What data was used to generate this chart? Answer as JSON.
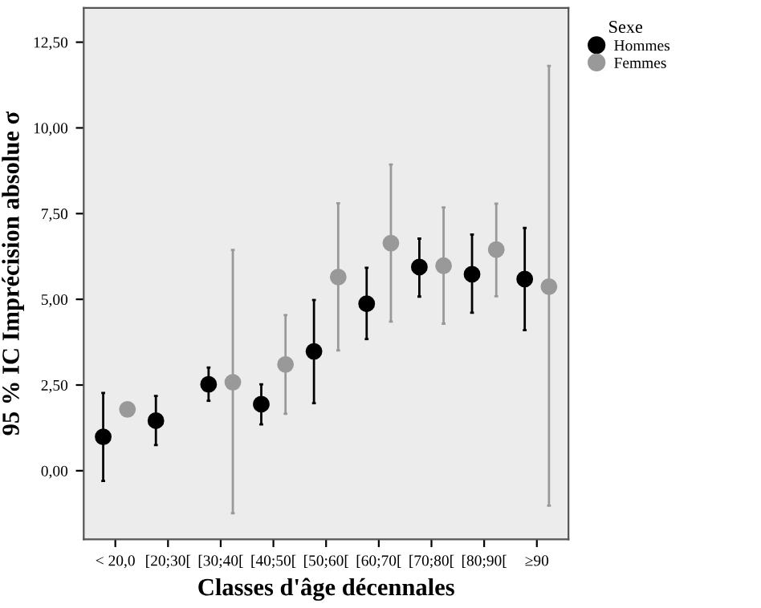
{
  "chart_data": {
    "type": "scatter",
    "xlabel": "Classes d'âge décennales",
    "ylabel": "95 % IC Imprécision absolue σ",
    "legend_title": "Sexe",
    "legend": "top right",
    "marker": "circle",
    "grid": false,
    "categories": [
      "< 20,0",
      "[20;30[",
      "[30;40[",
      "[40;50[",
      "[50;60[",
      "[60;70[",
      "[70;80[",
      "[80;90[",
      "≥90"
    ],
    "ylim": [
      -2,
      13.5
    ],
    "yticks": [
      {
        "value": 0,
        "label": "0,00"
      },
      {
        "value": 2.5,
        "label": "2,50"
      },
      {
        "value": 5,
        "label": "5,00"
      },
      {
        "value": 7.5,
        "label": "7,50"
      },
      {
        "value": 10,
        "label": "10,00"
      },
      {
        "value": 12.5,
        "label": "12,50"
      }
    ],
    "series": [
      {
        "name": "Hommes",
        "color": "#000000",
        "values": [
          0.99,
          1.46,
          2.52,
          1.94,
          3.48,
          4.87,
          5.94,
          5.73,
          5.59
        ],
        "errors": [
          [
            -0.3,
            2.27
          ],
          [
            0.75,
            2.18
          ],
          [
            2.04,
            3.01
          ],
          [
            1.35,
            2.52
          ],
          [
            1.97,
            4.98
          ],
          [
            3.84,
            5.92
          ],
          [
            5.08,
            6.77
          ],
          [
            4.61,
            6.89
          ],
          [
            4.1,
            7.08
          ]
        ]
      },
      {
        "name": "Femmes",
        "color": "#999999",
        "values": [
          1.79,
          null,
          2.58,
          3.1,
          5.65,
          6.64,
          5.98,
          6.45,
          5.37
        ],
        "errors": [
          null,
          null,
          [
            -1.24,
            6.44
          ],
          [
            1.66,
            4.54
          ],
          [
            3.51,
            7.8
          ],
          [
            4.35,
            8.93
          ],
          [
            4.29,
            7.68
          ],
          [
            5.09,
            7.79
          ],
          [
            -1.02,
            11.81
          ]
        ]
      }
    ]
  }
}
